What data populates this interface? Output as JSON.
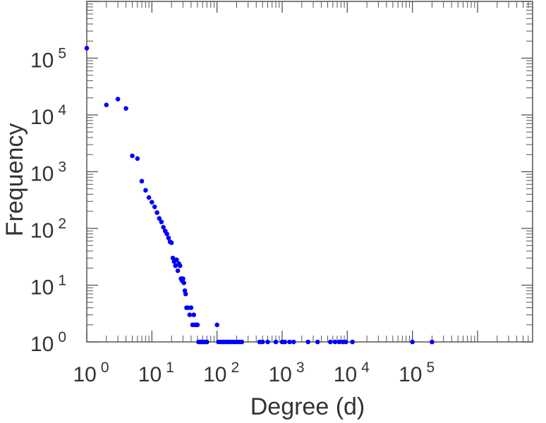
{
  "chart_data": {
    "type": "scatter",
    "xlabel": "Degree (d)",
    "ylabel": "Frequency",
    "x_scale": "log",
    "y_scale": "log",
    "xlim": [
      1,
      7000000
    ],
    "ylim": [
      1,
      1000000
    ],
    "grid": false,
    "colors": {
      "points": "#0000ff",
      "axes": "#555555",
      "text": "#333333"
    },
    "x_ticks": [
      {
        "base": "10",
        "exp": "0"
      },
      {
        "base": "10",
        "exp": "1"
      },
      {
        "base": "10",
        "exp": "2"
      },
      {
        "base": "10",
        "exp": "3"
      },
      {
        "base": "10",
        "exp": "4"
      },
      {
        "base": "10",
        "exp": "5"
      }
    ],
    "y_ticks": [
      {
        "base": "10",
        "exp": "0"
      },
      {
        "base": "10",
        "exp": "1"
      },
      {
        "base": "10",
        "exp": "2"
      },
      {
        "base": "10",
        "exp": "3"
      },
      {
        "base": "10",
        "exp": "4"
      },
      {
        "base": "10",
        "exp": "5"
      }
    ],
    "points": [
      [
        1,
        150000
      ],
      [
        2,
        15000
      ],
      [
        3,
        19000
      ],
      [
        4,
        13000
      ],
      [
        5,
        1900
      ],
      [
        6,
        1700
      ],
      [
        7,
        680
      ],
      [
        8,
        470
      ],
      [
        9,
        350
      ],
      [
        10,
        290
      ],
      [
        11,
        240
      ],
      [
        12,
        190
      ],
      [
        13,
        150
      ],
      [
        14,
        130
      ],
      [
        15,
        105
      ],
      [
        16,
        90
      ],
      [
        17,
        80
      ],
      [
        18,
        68
      ],
      [
        19,
        58
      ],
      [
        20,
        56
      ],
      [
        21,
        30
      ],
      [
        22,
        26
      ],
      [
        23,
        22
      ],
      [
        24,
        28
      ],
      [
        25,
        18
      ],
      [
        26,
        24
      ],
      [
        27,
        22
      ],
      [
        28,
        13
      ],
      [
        29,
        12
      ],
      [
        30,
        13
      ],
      [
        31,
        11
      ],
      [
        32,
        8
      ],
      [
        33,
        7
      ],
      [
        34,
        4
      ],
      [
        36,
        4
      ],
      [
        38,
        3
      ],
      [
        40,
        4
      ],
      [
        42,
        2
      ],
      [
        44,
        3
      ],
      [
        46,
        2
      ],
      [
        48,
        2
      ],
      [
        50,
        2
      ],
      [
        52,
        1
      ],
      [
        55,
        1
      ],
      [
        58,
        1
      ],
      [
        62,
        1
      ],
      [
        66,
        1
      ],
      [
        70,
        1
      ],
      [
        100,
        2
      ],
      [
        105,
        1
      ],
      [
        115,
        1
      ],
      [
        125,
        1
      ],
      [
        135,
        1
      ],
      [
        145,
        1
      ],
      [
        155,
        1
      ],
      [
        170,
        1
      ],
      [
        185,
        1
      ],
      [
        200,
        1
      ],
      [
        220,
        1
      ],
      [
        240,
        1
      ],
      [
        450,
        1
      ],
      [
        500,
        1
      ],
      [
        600,
        1
      ],
      [
        800,
        1
      ],
      [
        1000,
        1
      ],
      [
        1100,
        1
      ],
      [
        1300,
        1
      ],
      [
        1500,
        1
      ],
      [
        2500,
        1
      ],
      [
        3500,
        1
      ],
      [
        5500,
        1
      ],
      [
        6500,
        1
      ],
      [
        7500,
        1
      ],
      [
        8500,
        1
      ],
      [
        9500,
        1
      ],
      [
        12000,
        1
      ],
      [
        100000,
        1
      ],
      [
        200000,
        1
      ]
    ]
  }
}
